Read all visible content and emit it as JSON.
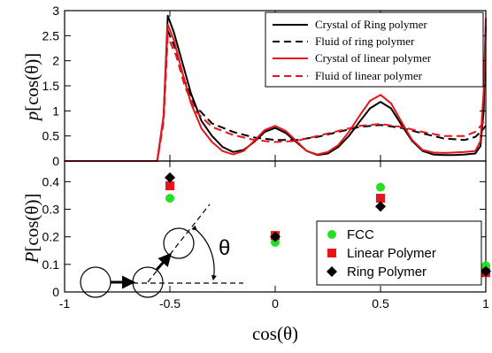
{
  "colors": {
    "black": "#000000",
    "red": "#e8141a",
    "green": "#22e022"
  },
  "chart_data": [
    {
      "type": "line",
      "xlim": [
        -1,
        1
      ],
      "ylim": [
        0,
        3
      ],
      "x_ticks": [
        "-1",
        "-0.5",
        "0",
        "0.5",
        "1"
      ],
      "y_ticks": [
        "0",
        "0.5",
        "1",
        "1.5",
        "2",
        "2.5",
        "3"
      ],
      "ylabel_italic": "p",
      "ylabel_rest": "[cos(θ)]",
      "legend_position": "top-right",
      "series": [
        {
          "name": "Crystal of Ring polymer",
          "color": "#000000",
          "dash": "solid",
          "points": [
            [
              -1,
              0
            ],
            [
              -0.56,
              0
            ],
            [
              -0.53,
              0.9
            ],
            [
              -0.51,
              2.9
            ],
            [
              -0.48,
              2.55
            ],
            [
              -0.44,
              1.95
            ],
            [
              -0.4,
              1.35
            ],
            [
              -0.35,
              0.8
            ],
            [
              -0.3,
              0.5
            ],
            [
              -0.25,
              0.28
            ],
            [
              -0.2,
              0.18
            ],
            [
              -0.15,
              0.22
            ],
            [
              -0.1,
              0.38
            ],
            [
              -0.05,
              0.58
            ],
            [
              0,
              0.66
            ],
            [
              0.05,
              0.56
            ],
            [
              0.1,
              0.38
            ],
            [
              0.15,
              0.2
            ],
            [
              0.2,
              0.12
            ],
            [
              0.25,
              0.15
            ],
            [
              0.3,
              0.28
            ],
            [
              0.35,
              0.5
            ],
            [
              0.4,
              0.78
            ],
            [
              0.45,
              1.05
            ],
            [
              0.5,
              1.18
            ],
            [
              0.55,
              1.05
            ],
            [
              0.6,
              0.72
            ],
            [
              0.65,
              0.4
            ],
            [
              0.7,
              0.2
            ],
            [
              0.75,
              0.13
            ],
            [
              0.8,
              0.12
            ],
            [
              0.85,
              0.12
            ],
            [
              0.9,
              0.13
            ],
            [
              0.95,
              0.15
            ],
            [
              0.975,
              0.3
            ],
            [
              0.99,
              1.0
            ],
            [
              1,
              2.7
            ]
          ]
        },
        {
          "name": "Fluid of ring polymer",
          "color": "#000000",
          "dash": "dashed",
          "points": [
            [
              -1,
              0
            ],
            [
              -0.56,
              0
            ],
            [
              -0.53,
              0.8
            ],
            [
              -0.51,
              2.6
            ],
            [
              -0.47,
              2.2
            ],
            [
              -0.43,
              1.6
            ],
            [
              -0.38,
              1.1
            ],
            [
              -0.3,
              0.75
            ],
            [
              -0.2,
              0.58
            ],
            [
              -0.1,
              0.47
            ],
            [
              0,
              0.42
            ],
            [
              0.1,
              0.42
            ],
            [
              0.2,
              0.48
            ],
            [
              0.3,
              0.58
            ],
            [
              0.4,
              0.68
            ],
            [
              0.5,
              0.72
            ],
            [
              0.6,
              0.66
            ],
            [
              0.7,
              0.55
            ],
            [
              0.8,
              0.45
            ],
            [
              0.9,
              0.42
            ],
            [
              0.95,
              0.48
            ],
            [
              0.98,
              0.6
            ],
            [
              1,
              0.7
            ]
          ]
        },
        {
          "name": "Crystal of linear polymer",
          "color": "#e8141a",
          "dash": "solid",
          "points": [
            [
              -1,
              0
            ],
            [
              -0.56,
              0
            ],
            [
              -0.53,
              0.9
            ],
            [
              -0.51,
              2.72
            ],
            [
              -0.48,
              2.4
            ],
            [
              -0.44,
              1.75
            ],
            [
              -0.4,
              1.15
            ],
            [
              -0.35,
              0.65
            ],
            [
              -0.3,
              0.38
            ],
            [
              -0.25,
              0.2
            ],
            [
              -0.2,
              0.13
            ],
            [
              -0.15,
              0.2
            ],
            [
              -0.1,
              0.4
            ],
            [
              -0.05,
              0.62
            ],
            [
              0,
              0.7
            ],
            [
              0.05,
              0.6
            ],
            [
              0.1,
              0.4
            ],
            [
              0.15,
              0.2
            ],
            [
              0.2,
              0.13
            ],
            [
              0.25,
              0.18
            ],
            [
              0.3,
              0.32
            ],
            [
              0.35,
              0.58
            ],
            [
              0.4,
              0.9
            ],
            [
              0.45,
              1.2
            ],
            [
              0.5,
              1.32
            ],
            [
              0.55,
              1.15
            ],
            [
              0.6,
              0.78
            ],
            [
              0.65,
              0.42
            ],
            [
              0.7,
              0.22
            ],
            [
              0.75,
              0.17
            ],
            [
              0.8,
              0.16
            ],
            [
              0.85,
              0.17
            ],
            [
              0.9,
              0.18
            ],
            [
              0.95,
              0.2
            ],
            [
              0.975,
              0.4
            ],
            [
              0.99,
              1.4
            ],
            [
              1,
              2.85
            ]
          ]
        },
        {
          "name": "Fluid of linear polymer",
          "color": "#e8141a",
          "dash": "dashed",
          "points": [
            [
              -1,
              0
            ],
            [
              -0.56,
              0
            ],
            [
              -0.53,
              0.8
            ],
            [
              -0.51,
              2.48
            ],
            [
              -0.47,
              2.1
            ],
            [
              -0.43,
              1.5
            ],
            [
              -0.38,
              1.0
            ],
            [
              -0.3,
              0.68
            ],
            [
              -0.2,
              0.52
            ],
            [
              -0.1,
              0.42
            ],
            [
              0,
              0.38
            ],
            [
              0.1,
              0.4
            ],
            [
              0.2,
              0.5
            ],
            [
              0.3,
              0.6
            ],
            [
              0.4,
              0.7
            ],
            [
              0.5,
              0.74
            ],
            [
              0.6,
              0.68
            ],
            [
              0.7,
              0.58
            ],
            [
              0.8,
              0.5
            ],
            [
              0.9,
              0.5
            ],
            [
              0.95,
              0.58
            ],
            [
              0.98,
              0.72
            ],
            [
              1,
              0.85
            ]
          ]
        }
      ]
    },
    {
      "type": "scatter",
      "xlim": [
        -1,
        1
      ],
      "ylim": [
        0,
        0.475
      ],
      "x_ticks": [
        "-1",
        "-0.5",
        "0",
        "0.5",
        "1"
      ],
      "y_ticks": [
        "0",
        "0.1",
        "0.2",
        "0.3",
        "0.4"
      ],
      "xlabel": "cos(θ)",
      "ylabel_italic": "P",
      "ylabel_rest": "[cos(θ)]",
      "legend_position": "bottom-right",
      "series": [
        {
          "name": "FCC",
          "marker": "circle",
          "color": "#22e022",
          "x": [
            -0.5,
            0,
            0.5,
            1
          ],
          "y": [
            0.34,
            0.18,
            0.38,
            0.095
          ]
        },
        {
          "name": "Linear Polymer",
          "marker": "square",
          "color": "#e8141a",
          "x": [
            -0.5,
            0,
            0.5,
            1
          ],
          "y": [
            0.385,
            0.205,
            0.34,
            0.07
          ]
        },
        {
          "name": "Ring Polymer",
          "marker": "diamond",
          "color": "#000000",
          "x": [
            -0.5,
            0,
            0.5,
            1
          ],
          "y": [
            0.415,
            0.2,
            0.31,
            0.075
          ]
        }
      ],
      "inset": {
        "angle_label": "θ"
      }
    }
  ]
}
